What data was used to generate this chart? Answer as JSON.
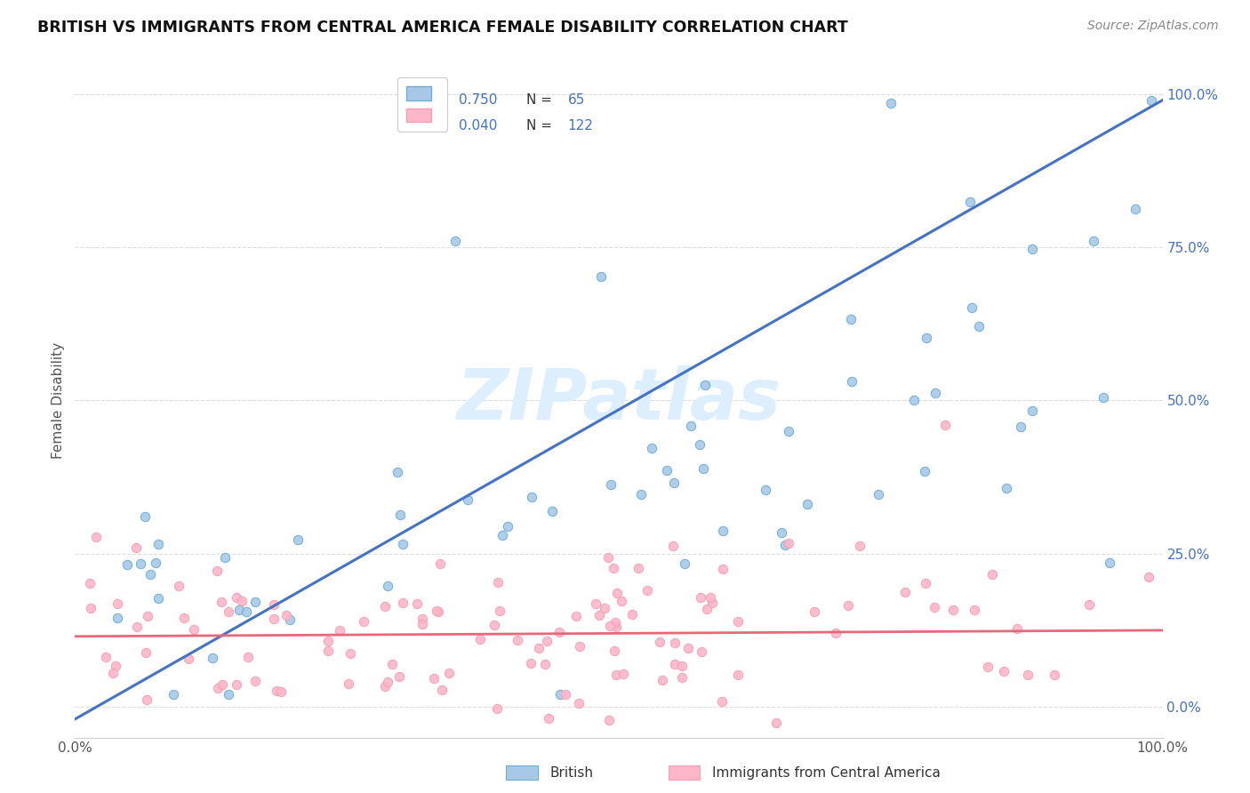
{
  "title": "BRITISH VS IMMIGRANTS FROM CENTRAL AMERICA FEMALE DISABILITY CORRELATION CHART",
  "source": "Source: ZipAtlas.com",
  "ylabel": "Female Disability",
  "xlim": [
    0.0,
    1.0
  ],
  "ylim": [
    -0.05,
    1.05
  ],
  "ytick_vals": [
    0.0,
    0.25,
    0.5,
    0.75,
    1.0
  ],
  "ytick_labels_right": [
    "0.0%",
    "25.0%",
    "50.0%",
    "75.0%",
    "100.0%"
  ],
  "british_color": "#a8c8e8",
  "british_edge_color": "#6baed6",
  "immigrant_color": "#ffb6c8",
  "immigrant_edge_color": "#f4a0b5",
  "line_british_color": "#4472c4",
  "line_immigrant_color": "#e8687a",
  "watermark": "ZIPatlas",
  "watermark_color": "#ddeeff",
  "legend_british_label": "British",
  "legend_immigrant_label": "Immigrants from Central America",
  "R_british_str": "0.750",
  "N_british_str": "65",
  "R_immigrant_str": "0.040",
  "N_immigrant_str": "122",
  "R_british": 0.75,
  "R_immigrant": 0.04,
  "N_british": 65,
  "N_immigrant": 122,
  "seed_british": 17,
  "seed_immigrant": 99,
  "grid_color": "#dddddd",
  "spine_color": "#cccccc",
  "tick_color": "#555555",
  "title_color": "#111111",
  "source_color": "#888888",
  "ylabel_color": "#555555",
  "right_tick_color": "#4472c4",
  "legend_text_color": "#4472c4"
}
